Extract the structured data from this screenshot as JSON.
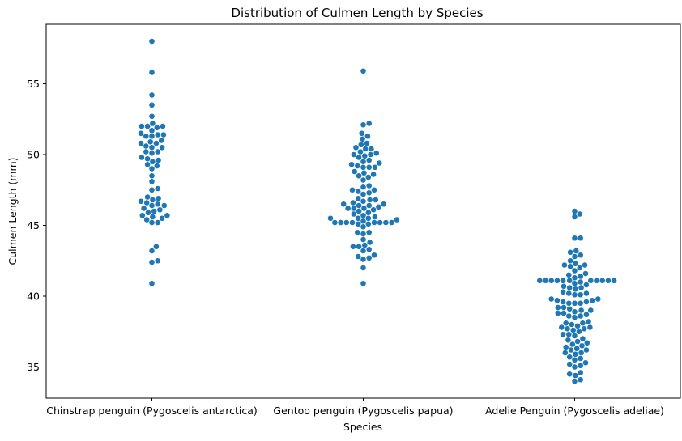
{
  "chart_data": {
    "type": "scatter",
    "subtype": "swarm",
    "title": "Distribution of Culmen Length by Species",
    "xlabel": "Species",
    "ylabel": "Culmen Length (mm)",
    "categories": [
      "Chinstrap penguin (Pygoscelis antarctica)",
      "Gentoo penguin (Pygoscelis papua)",
      "Adelie Penguin (Pygoscelis adeliae)"
    ],
    "ylim": [
      32.8,
      59.2
    ],
    "yticks": [
      "35",
      "40",
      "45",
      "50",
      "55"
    ],
    "grid": false,
    "marker_color": "#1f77b4",
    "series": [
      {
        "values": [
          58.0,
          55.8,
          54.2,
          53.5,
          52.7,
          52.2,
          52.0,
          52.0,
          52.0,
          51.9,
          51.7,
          51.5,
          51.4,
          51.4,
          51.3,
          51.3,
          51.0,
          50.9,
          50.8,
          50.8,
          50.6,
          50.5,
          50.5,
          50.2,
          50.2,
          50.1,
          49.8,
          49.7,
          49.6,
          49.5,
          49.3,
          49.2,
          49.0,
          48.5,
          48.1,
          47.6,
          47.5,
          47.0,
          46.9,
          46.8,
          46.7,
          46.6,
          46.5,
          46.4,
          46.4,
          46.2,
          46.1,
          46.0,
          45.9,
          45.7,
          45.7,
          45.6,
          45.5,
          45.4,
          45.2,
          45.2,
          43.5,
          43.2,
          42.5,
          42.4,
          40.9
        ]
      },
      {
        "values": [
          55.9,
          52.2,
          52.1,
          51.5,
          51.3,
          51.1,
          50.8,
          50.7,
          50.5,
          50.4,
          50.4,
          50.2,
          50.1,
          50.0,
          50.0,
          49.9,
          49.8,
          49.6,
          49.5,
          49.4,
          49.3,
          49.2,
          49.1,
          49.1,
          49.1,
          48.8,
          48.7,
          48.6,
          48.5,
          48.4,
          48.2,
          47.8,
          47.7,
          47.5,
          47.5,
          47.4,
          47.3,
          47.2,
          46.9,
          46.8,
          46.8,
          46.7,
          46.6,
          46.5,
          46.5,
          46.4,
          46.4,
          46.3,
          46.2,
          46.2,
          46.2,
          46.1,
          46.0,
          45.9,
          45.8,
          45.7,
          45.6,
          45.5,
          45.5,
          45.5,
          45.4,
          45.3,
          45.2,
          45.2,
          45.2,
          45.2,
          45.2,
          45.2,
          45.2,
          45.2,
          45.1,
          45.1,
          44.9,
          44.5,
          44.5,
          44.4,
          44.0,
          43.8,
          43.6,
          43.5,
          43.5,
          43.3,
          43.2,
          42.9,
          42.8,
          42.7,
          42.6,
          42.0,
          40.9
        ]
      },
      {
        "values": [
          46.0,
          45.8,
          45.6,
          44.1,
          44.1,
          43.2,
          43.1,
          42.9,
          42.8,
          42.5,
          42.3,
          42.2,
          42.2,
          42.1,
          42.0,
          41.8,
          41.6,
          41.5,
          41.4,
          41.3,
          41.1,
          41.1,
          41.1,
          41.1,
          41.1,
          41.1,
          41.1,
          41.1,
          41.1,
          41.1,
          41.1,
          41.0,
          40.9,
          40.8,
          40.7,
          40.6,
          40.6,
          40.5,
          40.3,
          40.2,
          40.2,
          40.1,
          40.1,
          39.8,
          39.8,
          39.7,
          39.7,
          39.6,
          39.6,
          39.5,
          39.5,
          39.5,
          39.2,
          39.2,
          39.1,
          39.0,
          39.0,
          38.9,
          38.8,
          38.8,
          38.7,
          38.6,
          38.6,
          38.5,
          38.2,
          38.1,
          38.1,
          38.0,
          37.9,
          37.8,
          37.8,
          37.7,
          37.7,
          37.6,
          37.5,
          37.3,
          37.3,
          37.2,
          37.0,
          36.9,
          36.8,
          36.7,
          36.6,
          36.5,
          36.4,
          36.3,
          36.2,
          36.2,
          36.0,
          36.0,
          35.9,
          35.7,
          35.6,
          35.5,
          35.3,
          35.2,
          35.1,
          35.0,
          34.6,
          34.5,
          34.4,
          34.1,
          34.0
        ]
      }
    ]
  }
}
